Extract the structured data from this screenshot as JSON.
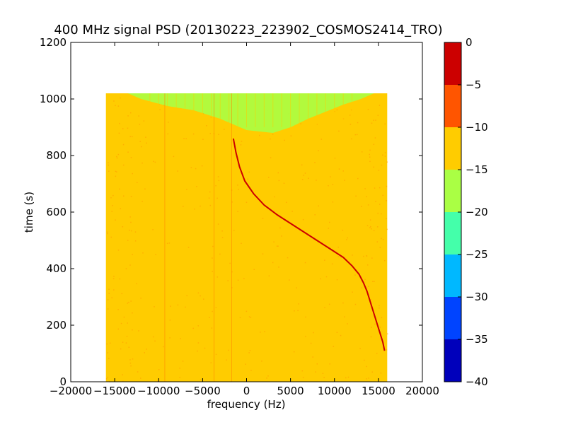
{
  "chart_data": {
    "type": "heatmap",
    "title": "400 MHz signal PSD (20130223_223902_COSMOS2414_TRO)",
    "xlabel": "frequency (Hz)",
    "ylabel": "time (s)",
    "xlim": [
      -20000,
      20000
    ],
    "ylim": [
      0,
      1200
    ],
    "x_ticks": [
      -20000,
      -15000,
      -10000,
      -5000,
      0,
      5000,
      10000,
      15000,
      20000
    ],
    "x_tick_labels": [
      "−20000",
      "−15000",
      "−10000",
      "−5000",
      "0",
      "5000",
      "10000",
      "15000",
      "20000"
    ],
    "y_ticks": [
      0,
      200,
      400,
      600,
      800,
      1000,
      1200
    ],
    "y_tick_labels": [
      "0",
      "200",
      "400",
      "600",
      "800",
      "1000",
      "1200"
    ],
    "data_extent": {
      "x": [
        -16000,
        16000
      ],
      "y": [
        0,
        1020
      ]
    },
    "grid": false,
    "colormap": "jet",
    "colorbar": {
      "levels": [
        -40,
        -35,
        -30,
        -25,
        -20,
        -15,
        -10,
        -5,
        0
      ],
      "tick_labels": [
        "−40",
        "−35",
        "−30",
        "−25",
        "−20",
        "−15",
        "−10",
        "−5",
        "0"
      ],
      "colors": [
        "#0000bb",
        "#0044ff",
        "#00b8ff",
        "#44ffaa",
        "#aaff44",
        "#ffcc00",
        "#ff5500",
        "#cc0000"
      ]
    },
    "regions": [
      {
        "level_range": [
          -15,
          -10
        ],
        "description_color": "#ffcc00",
        "extent_x": [
          -16000,
          16000
        ],
        "extent_y": [
          0,
          1020
        ]
      },
      {
        "level_range": [
          -20,
          -15
        ],
        "description_color": "#aaff44",
        "boundary": [
          [
            -13500,
            1020
          ],
          [
            -12000,
            1000
          ],
          [
            -9000,
            975
          ],
          [
            -6000,
            960
          ],
          [
            -3000,
            930
          ],
          [
            0,
            890
          ],
          [
            3000,
            880
          ],
          [
            5000,
            900
          ],
          [
            7000,
            930
          ],
          [
            9000,
            955
          ],
          [
            11000,
            980
          ],
          [
            13000,
            1000
          ],
          [
            14500,
            1020
          ]
        ]
      }
    ],
    "signal_trace": {
      "level_range": [
        0,
        -5
      ],
      "color": "#cc0000",
      "points": [
        [
          -1500,
          860
        ],
        [
          -1200,
          810
        ],
        [
          -800,
          760
        ],
        [
          -200,
          710
        ],
        [
          800,
          665
        ],
        [
          2000,
          625
        ],
        [
          3500,
          590
        ],
        [
          5000,
          560
        ],
        [
          6500,
          530
        ],
        [
          8000,
          500
        ],
        [
          9500,
          470
        ],
        [
          11000,
          440
        ],
        [
          12000,
          410
        ],
        [
          12800,
          380
        ],
        [
          13300,
          350
        ],
        [
          13700,
          320
        ],
        [
          14100,
          280
        ],
        [
          14500,
          240
        ],
        [
          14900,
          200
        ],
        [
          15200,
          170
        ],
        [
          15500,
          140
        ],
        [
          15700,
          110
        ]
      ]
    }
  }
}
